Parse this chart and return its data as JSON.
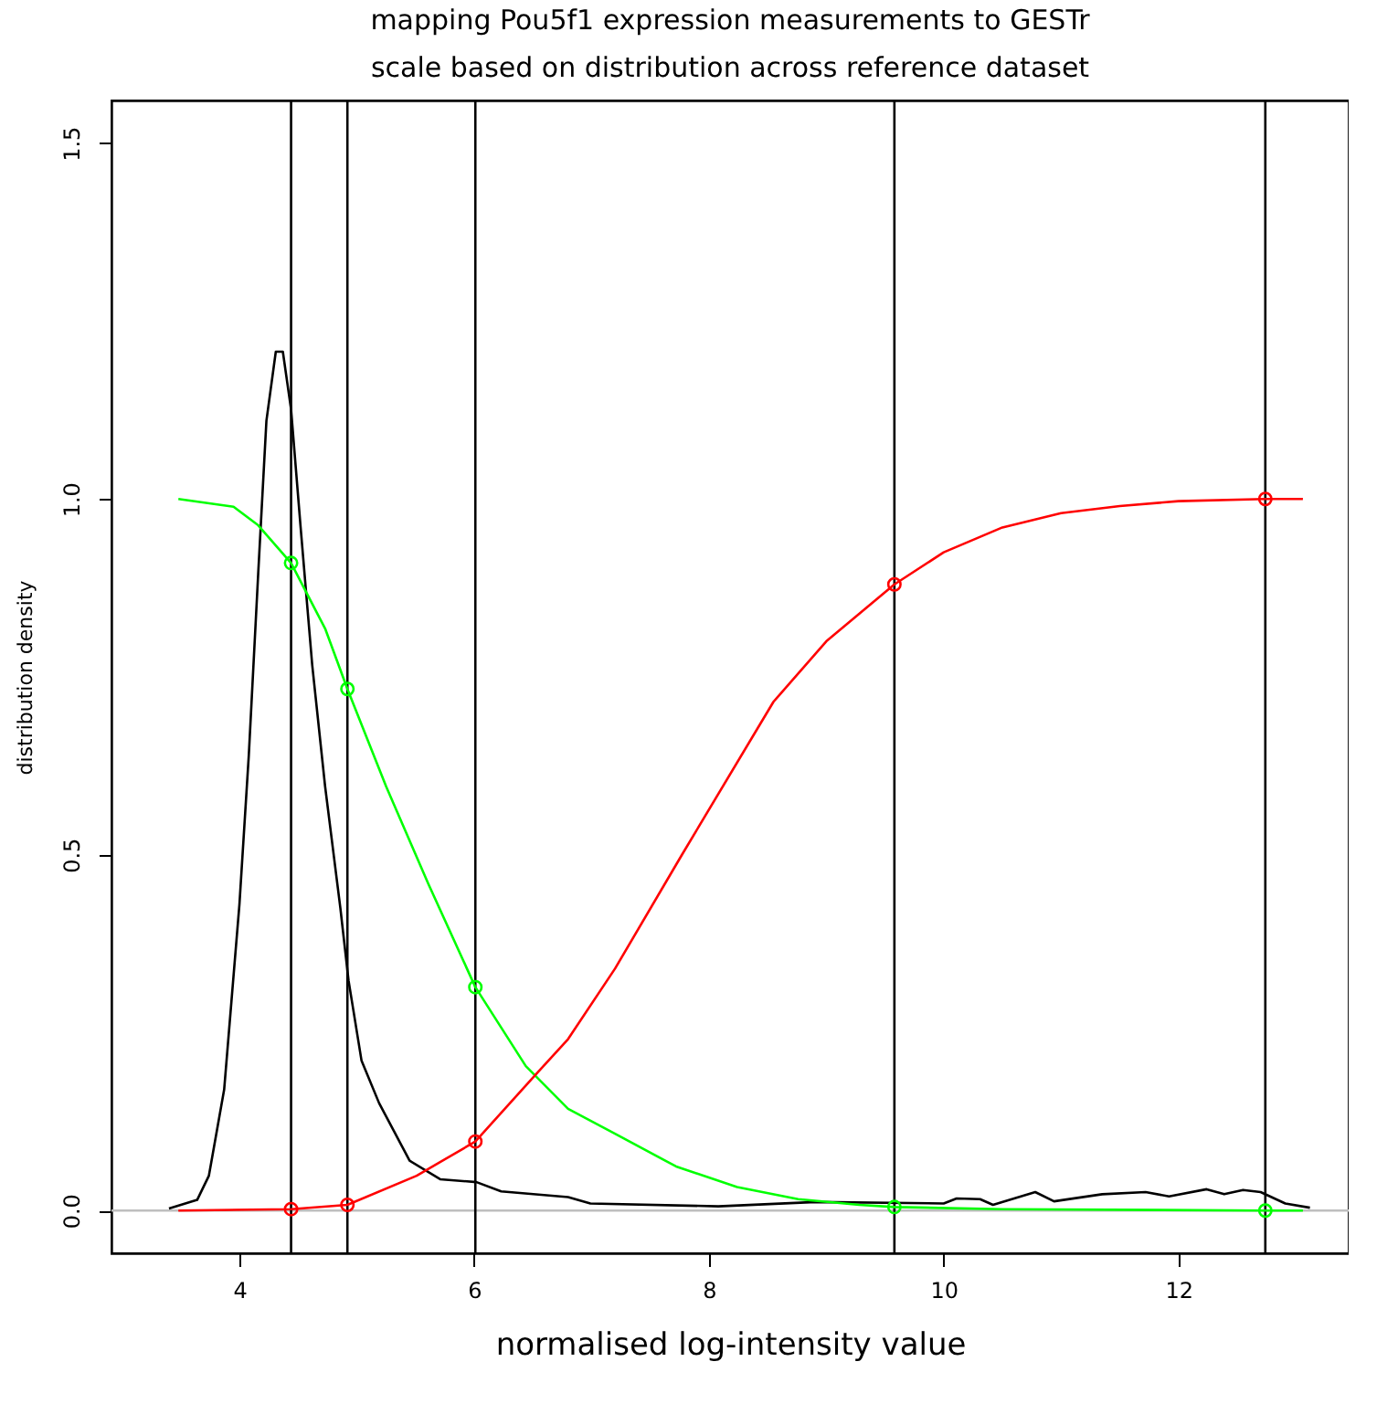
{
  "chart_data": {
    "type": "line",
    "title": "mapping Pou5f1 expression measurements to GESTr\nscale based on distribution across reference dataset",
    "xlabel": "normalised log-intensity value",
    "ylabel": "distribution density",
    "xlim": [
      2.91,
      13.45
    ],
    "ylim": [
      -0.06,
      1.56
    ],
    "xticks": [
      4,
      6,
      8,
      10,
      12
    ],
    "yticks": [
      {
        "value": 0,
        "label": "0.0"
      },
      {
        "value": 0.5,
        "label": "0.5"
      },
      {
        "value": 1,
        "label": "1.0"
      },
      {
        "value": 1.5,
        "label": "1.5"
      }
    ],
    "grid": false,
    "line_style": "solid",
    "ref_lines": [
      {
        "axis": "y",
        "value": 0,
        "color": "#bebebe"
      },
      {
        "axis": "x",
        "value": 4.44,
        "color": "#000000"
      },
      {
        "axis": "x",
        "value": 4.92,
        "color": "#000000"
      },
      {
        "axis": "x",
        "value": 6.01,
        "color": "#000000"
      },
      {
        "axis": "x",
        "value": 9.58,
        "color": "#000000"
      },
      {
        "axis": "x",
        "value": 12.74,
        "color": "#000000"
      }
    ],
    "series": [
      {
        "color": "#000000",
        "x": [
          3.4,
          3.64,
          3.74,
          3.87,
          4.0,
          4.08,
          4.16,
          4.23,
          4.31,
          4.37,
          4.44,
          4.52,
          4.62,
          4.73,
          4.86,
          4.93,
          5.04,
          5.19,
          5.45,
          5.71,
          6.02,
          6.23,
          6.8,
          6.99,
          8.08,
          8.91,
          10.0,
          10.11,
          10.31,
          10.42,
          10.78,
          10.94,
          11.35,
          11.72,
          11.92,
          12.24,
          12.39,
          12.55,
          12.7,
          12.91,
          13.12
        ],
        "values": [
          0.003,
          0.015,
          0.049,
          0.17,
          0.43,
          0.64,
          0.895,
          1.11,
          1.207,
          1.207,
          1.126,
          0.963,
          0.767,
          0.596,
          0.425,
          0.323,
          0.211,
          0.151,
          0.07,
          0.044,
          0.04,
          0.027,
          0.019,
          0.01,
          0.006,
          0.012,
          0.01,
          0.017,
          0.016,
          0.008,
          0.026,
          0.013,
          0.023,
          0.026,
          0.02,
          0.03,
          0.023,
          0.029,
          0.026,
          0.01,
          0.004
        ]
      },
      {
        "color": "#00ff00",
        "x": [
          3.48,
          3.95,
          4.16,
          4.44,
          4.73,
          4.92,
          5.25,
          5.61,
          6.01,
          6.44,
          6.8,
          7.2,
          7.72,
          8.24,
          8.76,
          9.28,
          9.58,
          10.5,
          12.74,
          13.06
        ],
        "values": [
          1.0,
          0.989,
          0.963,
          0.91,
          0.818,
          0.733,
          0.596,
          0.459,
          0.314,
          0.203,
          0.143,
          0.108,
          0.062,
          0.033,
          0.016,
          0.008,
          0.005,
          0.002,
          0,
          0
        ]
      },
      {
        "color": "#ff0000",
        "x": [
          3.48,
          4.44,
          4.92,
          5.51,
          6.01,
          6.54,
          6.8,
          7.2,
          7.77,
          8.55,
          9.0,
          9.58,
          10.0,
          10.5,
          11.0,
          11.5,
          12.0,
          12.74,
          13.06
        ],
        "values": [
          0,
          0.002,
          0.008,
          0.049,
          0.097,
          0.194,
          0.241,
          0.34,
          0.5,
          0.715,
          0.8,
          0.88,
          0.925,
          0.96,
          0.98,
          0.99,
          0.997,
          1.0,
          1.0
        ]
      },
      {
        "type": "scatter",
        "marker": "circle",
        "color": "#00ff00",
        "x": [
          4.44,
          4.92,
          6.01,
          9.58,
          12.74
        ],
        "values": [
          0.91,
          0.733,
          0.314,
          0.005,
          0
        ]
      },
      {
        "type": "scatter",
        "marker": "circle",
        "color": "#ff0000",
        "x": [
          4.44,
          4.92,
          6.01,
          9.58,
          12.74
        ],
        "values": [
          0.002,
          0.008,
          0.097,
          0.88,
          1.0
        ]
      }
    ]
  }
}
